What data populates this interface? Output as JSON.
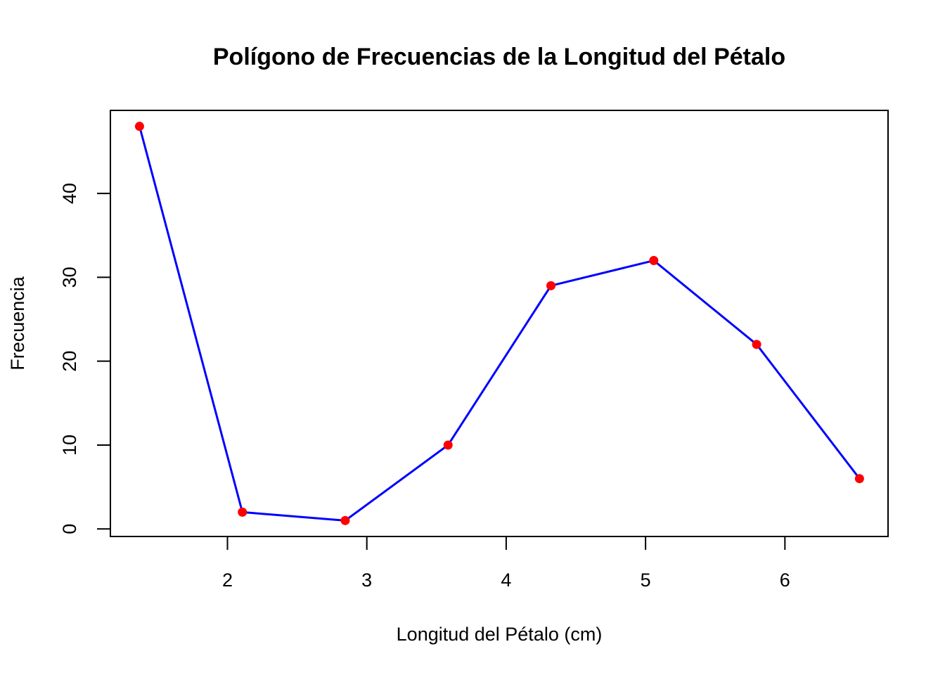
{
  "chart_data": {
    "type": "line",
    "title": "Polígono de Frecuencias de la Longitud del Pétalo",
    "xlabel": "Longitud del Pétalo (cm)",
    "ylabel": "Frecuencia",
    "x": [
      1.369,
      2.107,
      2.845,
      3.583,
      4.321,
      5.059,
      5.797,
      6.535
    ],
    "series": [
      {
        "values": [
          48,
          2,
          1,
          10,
          29,
          32,
          22,
          6
        ]
      }
    ],
    "x_ticks": [
      "2",
      "3",
      "4",
      "5",
      "6"
    ],
    "x_tick_values": [
      2,
      3,
      4,
      5,
      6
    ],
    "y_ticks": [
      "0",
      "10",
      "20",
      "30",
      "40"
    ],
    "y_tick_values": [
      0,
      10,
      20,
      30,
      40
    ],
    "xlim": [
      1.16,
      6.74
    ],
    "ylim": [
      -0.9,
      49.9
    ],
    "grid": false,
    "legend": "none",
    "line_color": "#0000FF",
    "point_color": "#FF0000"
  }
}
